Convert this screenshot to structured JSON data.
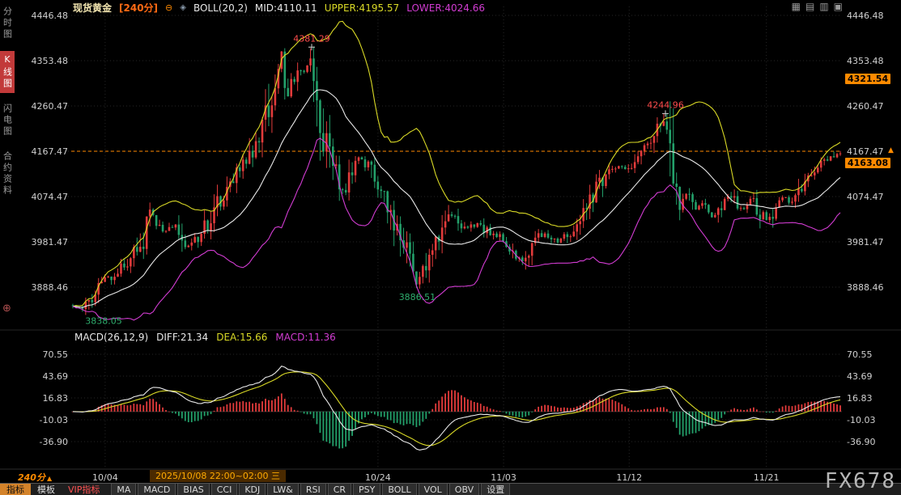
{
  "header": {
    "symbol": "现货黄金",
    "period_tag": "[240分]",
    "collapse_icon": "⊖",
    "indicator_icon": "◈",
    "indicator_label": "BOLL(20,2)",
    "mid_label": "MID:4110.11",
    "upper_label": "UPPER:4195.57",
    "lower_label": "LOWER:4024.66",
    "window_icons": [
      "▦",
      "▤",
      "▥",
      "▣"
    ]
  },
  "left_rail": {
    "items": [
      {
        "id": "time-chart",
        "label": "分时图",
        "active": false
      },
      {
        "id": "kline-chart",
        "label": "K线图",
        "active": true
      },
      {
        "id": "lightning-chart",
        "label": "闪电图",
        "active": false
      },
      {
        "id": "contract-info",
        "label": "合约资料",
        "active": false
      }
    ],
    "tool_icon": "⊕"
  },
  "main_chart": {
    "y_ticks": [
      4446.48,
      4353.48,
      4260.47,
      4167.47,
      4074.47,
      3981.47,
      3888.46
    ],
    "dotted_line_price": 4167.47,
    "alert_arrow": "▲",
    "right_tags": [
      {
        "label": "4321.54",
        "price": 4321.54,
        "nudge": 4
      },
      {
        "label": "4163.08",
        "price": 4163.08,
        "nudge": 12
      }
    ],
    "annotations": [
      {
        "text": "4381.29",
        "t": 0.312,
        "price": 4381.29,
        "color": "#ff4d4d",
        "position": "above",
        "marker": true
      },
      {
        "text": "4244.96",
        "t": 0.771,
        "price": 4244.96,
        "color": "#ff4d4d",
        "position": "above",
        "marker": true
      },
      {
        "text": "3886.51",
        "t": 0.449,
        "price": 3886.51,
        "color": "#2fae6e",
        "position": "below",
        "marker": false
      },
      {
        "text": "3838.05",
        "t": 0.013,
        "price": 3838.05,
        "color": "#2fae6e",
        "position": "below",
        "marker": false
      }
    ]
  },
  "macd": {
    "title": "MACD(26,12,9)",
    "diff_label": "DIFF:21.34",
    "dea_label": "DEA:15.66",
    "macd_label": "MACD:11.36",
    "y_ticks": [
      70.55,
      43.69,
      16.83,
      -10.03,
      -36.9
    ]
  },
  "x_axis": {
    "period_badge": "240分",
    "period_arrow": "▲",
    "crosshair_info": "2025/10/08 22:00~02:00 三",
    "labels": [
      {
        "text": "10/04",
        "t": 0.044
      },
      {
        "text": "10/24",
        "t": 0.398
      },
      {
        "text": "11/03",
        "t": 0.561
      },
      {
        "text": "11/12",
        "t": 0.724
      },
      {
        "text": "11/21",
        "t": 0.902
      }
    ]
  },
  "toolbar": {
    "tabs": [
      {
        "id": "indicators",
        "label": "指标",
        "style": "active"
      },
      {
        "id": "templates",
        "label": "模板",
        "style": "plain"
      },
      {
        "id": "vip-indicators",
        "label": "VIP指标",
        "style": "vip"
      }
    ],
    "buttons": [
      "MA",
      "MACD",
      "BIAS",
      "CCI",
      "KDJ",
      "LW&",
      "RSI",
      "CR",
      "PSY",
      "BOLL",
      "VOL",
      "OBV",
      "设置"
    ]
  },
  "watermark": "FX678",
  "colors": {
    "up": "#e23b3b",
    "down": "#23a06a",
    "boll_upper": "#d9d926",
    "boll_mid": "#e8e8e8",
    "boll_lower": "#d23cd2",
    "accent_orange": "#ff8a00",
    "tag_bg": "#ff8a00",
    "macd_diff": "#e8e8e8",
    "macd_dea": "#d9d926",
    "hist_up": "#e23b3b",
    "hist_down": "#23a06a",
    "annotation_red": "#ff4d4d",
    "annotation_green": "#2fae6e"
  },
  "chart_data": {
    "type": "candlestick",
    "symbol": "现货黄金",
    "period_minutes": 240,
    "candle_count": 240,
    "seed": 20251008,
    "last_close": 4163.08,
    "session_high_tag": 4321.54,
    "boll": {
      "period": 20,
      "mult": 2,
      "mid": 4110.11,
      "upper": 4195.57,
      "lower": 4024.66
    },
    "macd": {
      "fast": 12,
      "slow": 26,
      "signal": 9,
      "diff": 21.34,
      "dea": 15.66,
      "macd": 11.36,
      "display_peak": 56
    },
    "key_points": {
      "peak": 4381.29,
      "secondary_peak": 4244.96,
      "trough": 3886.51,
      "early_trough": 3838.05
    },
    "y_range_main": [
      3888.46,
      4446.48
    ],
    "y_range_macd": [
      -36.9,
      70.55
    ],
    "x_tick_labels": [
      "10/04",
      "10/24",
      "11/03",
      "11/12",
      "11/21"
    ],
    "price_waypoints": [
      [
        0,
        3850
      ],
      [
        0.013,
        3846
      ],
      [
        0.039,
        3897
      ],
      [
        0.065,
        3930
      ],
      [
        0.091,
        3980
      ],
      [
        0.102,
        4042
      ],
      [
        0.118,
        3998
      ],
      [
        0.133,
        4014
      ],
      [
        0.149,
        3968
      ],
      [
        0.17,
        4004
      ],
      [
        0.186,
        4054
      ],
      [
        0.202,
        4096
      ],
      [
        0.217,
        4128
      ],
      [
        0.233,
        4170
      ],
      [
        0.249,
        4228
      ],
      [
        0.263,
        4320
      ],
      [
        0.272,
        4365
      ],
      [
        0.278,
        4285
      ],
      [
        0.287,
        4315
      ],
      [
        0.3,
        4338
      ],
      [
        0.312,
        4352
      ],
      [
        0.322,
        4248
      ],
      [
        0.333,
        4165
      ],
      [
        0.344,
        4122
      ],
      [
        0.354,
        4085
      ],
      [
        0.364,
        4135
      ],
      [
        0.375,
        4155
      ],
      [
        0.386,
        4130
      ],
      [
        0.396,
        4096
      ],
      [
        0.407,
        4070
      ],
      [
        0.417,
        4028
      ],
      [
        0.428,
        3982
      ],
      [
        0.438,
        3946
      ],
      [
        0.449,
        3895
      ],
      [
        0.459,
        3932
      ],
      [
        0.47,
        3963
      ],
      [
        0.485,
        4012
      ],
      [
        0.496,
        4040
      ],
      [
        0.512,
        4005
      ],
      [
        0.527,
        4022
      ],
      [
        0.543,
        3997
      ],
      [
        0.559,
        3988
      ],
      [
        0.575,
        3964
      ],
      [
        0.585,
        3940
      ],
      [
        0.601,
        3988
      ],
      [
        0.617,
        3997
      ],
      [
        0.632,
        3981
      ],
      [
        0.648,
        3997
      ],
      [
        0.664,
        4030
      ],
      [
        0.68,
        4080
      ],
      [
        0.695,
        4122
      ],
      [
        0.711,
        4138
      ],
      [
        0.722,
        4128
      ],
      [
        0.737,
        4155
      ],
      [
        0.753,
        4188
      ],
      [
        0.764,
        4220
      ],
      [
        0.771,
        4233
      ],
      [
        0.779,
        4205
      ],
      [
        0.785,
        4105
      ],
      [
        0.79,
        4062
      ],
      [
        0.8,
        4080
      ],
      [
        0.811,
        4047
      ],
      [
        0.821,
        4063
      ],
      [
        0.832,
        4030
      ],
      [
        0.842,
        4055
      ],
      [
        0.853,
        4080
      ],
      [
        0.864,
        4063
      ],
      [
        0.874,
        4047
      ],
      [
        0.885,
        4072
      ],
      [
        0.895,
        4040
      ],
      [
        0.906,
        4022
      ],
      [
        0.916,
        4055
      ],
      [
        0.927,
        4072
      ],
      [
        0.937,
        4063
      ],
      [
        0.948,
        4096
      ],
      [
        0.958,
        4113
      ],
      [
        0.969,
        4130
      ],
      [
        0.979,
        4147
      ],
      [
        0.99,
        4155
      ],
      [
        1,
        4163
      ]
    ]
  }
}
